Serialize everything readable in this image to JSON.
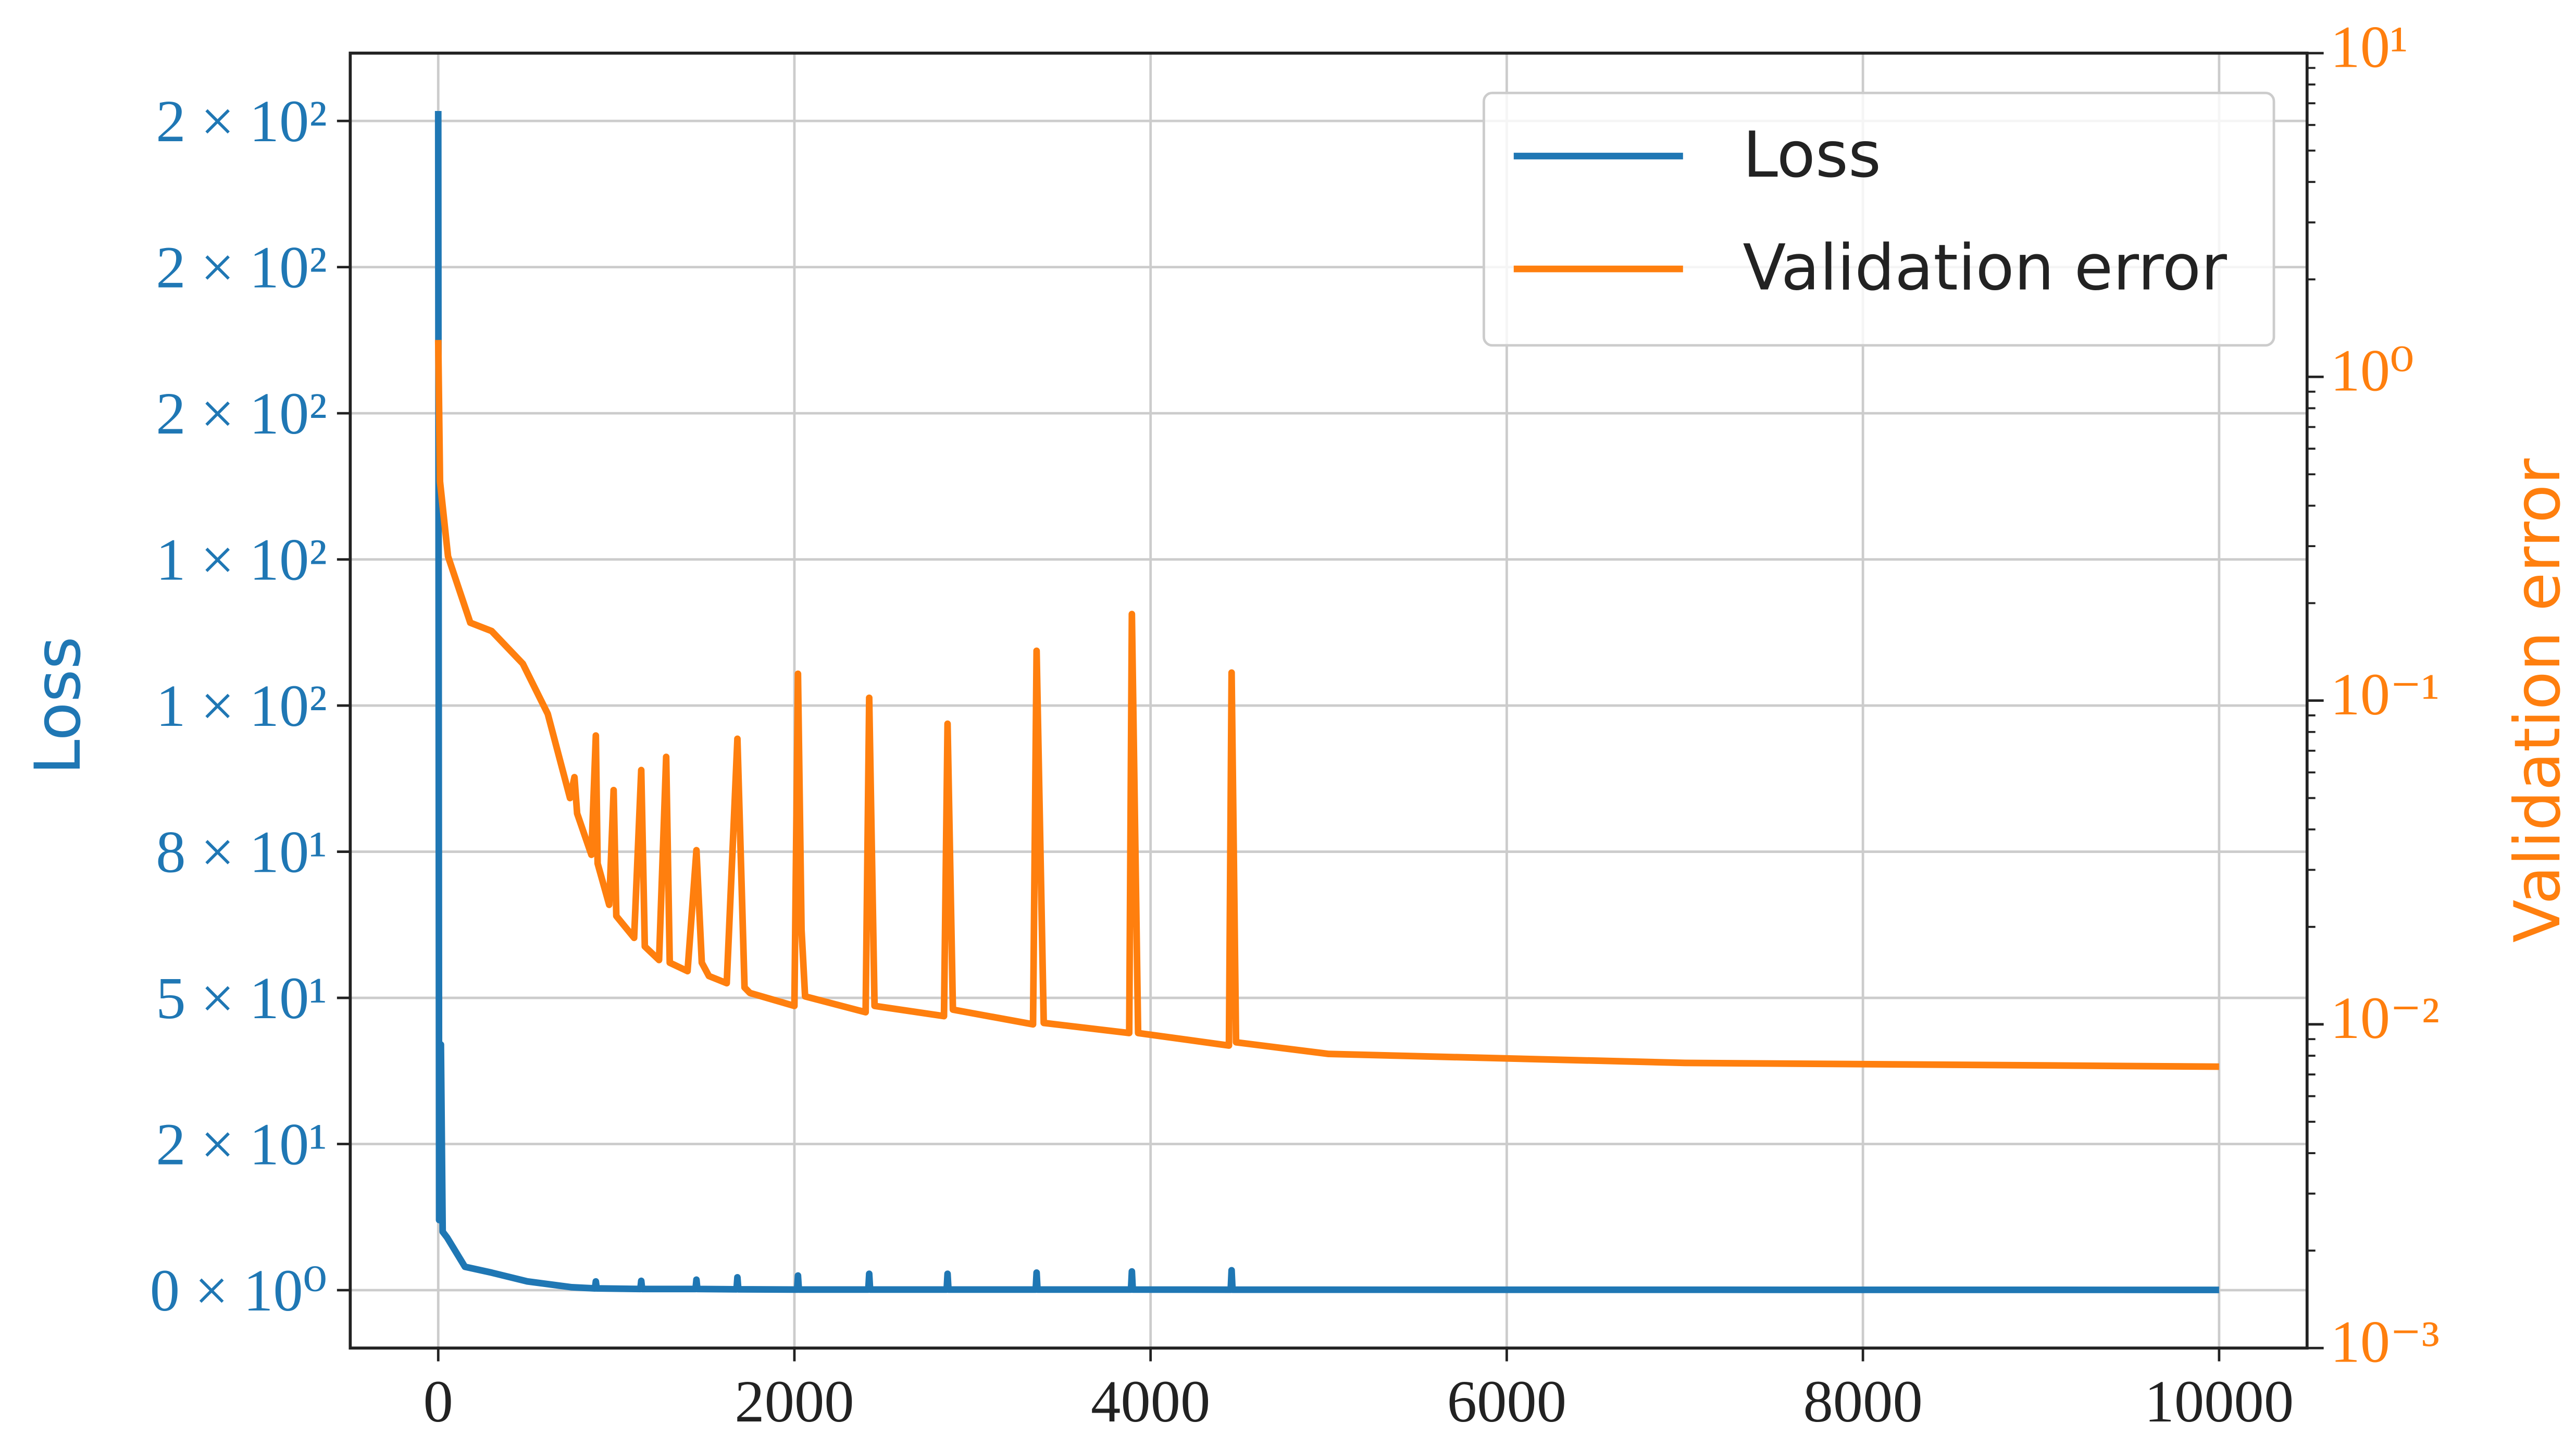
{
  "chart_data": {
    "type": "line",
    "ylabel": "Loss",
    "y2label": "Validation error",
    "xlim": [
      -494,
      10494
    ],
    "xticks": [
      0,
      2000,
      4000,
      6000,
      8000,
      10000
    ],
    "ylim": [
      -9.9,
      211.6
    ],
    "yticks": [
      {
        "value": 0,
        "label": "0 × 10⁰"
      },
      {
        "value": 25,
        "label": "2 × 10¹"
      },
      {
        "value": 50,
        "label": "5 × 10¹"
      },
      {
        "value": 75,
        "label": "8 × 10¹"
      },
      {
        "value": 100,
        "label": "1 × 10²"
      },
      {
        "value": 125,
        "label": "1 × 10²"
      },
      {
        "value": 150,
        "label": "2 × 10²"
      },
      {
        "value": 175,
        "label": "2 × 10²"
      },
      {
        "value": 200,
        "label": "2 × 10²"
      }
    ],
    "y2lim": [
      0.001,
      10
    ],
    "y2log": true,
    "y2ticks": [
      {
        "value": 0.001,
        "label": "10⁻³"
      },
      {
        "value": 0.01,
        "label": "10⁻²"
      },
      {
        "value": 0.1,
        "label": "10⁻¹"
      },
      {
        "value": 1,
        "label": "10⁰"
      },
      {
        "value": 10,
        "label": "10¹"
      }
    ],
    "grid": true,
    "legend": "upper right",
    "series": [
      {
        "name": "Loss",
        "color": "#1f77b4",
        "x": [
          0,
          5,
          15,
          25,
          50,
          150,
          300,
          500,
          750,
          880,
          885,
          890,
          1135,
          1140,
          1145,
          1445,
          1450,
          1455,
          1675,
          1680,
          1685,
          2015,
          2020,
          2025,
          2415,
          2420,
          2425,
          2855,
          2860,
          2865,
          3355,
          3360,
          3365,
          3890,
          3895,
          3900,
          4450,
          4455,
          4460,
          10000
        ],
        "values": [
          201.7,
          12,
          42,
          10,
          9,
          4,
          3,
          1.5,
          0.5,
          0.3,
          1.5,
          0.3,
          0.2,
          1.6,
          0.2,
          0.2,
          1.8,
          0.2,
          0.15,
          2.2,
          0.15,
          0.1,
          2.5,
          0.1,
          0.1,
          2.8,
          0.1,
          0.1,
          2.8,
          0.1,
          0.1,
          3,
          0.1,
          0.1,
          3.2,
          0.1,
          0.08,
          3.4,
          0.08,
          0.05
        ]
      },
      {
        "name": "Validation error",
        "color": "#ff7f0e",
        "axis": "y2",
        "x": [
          0,
          10,
          55,
          180,
          300,
          475,
          615,
          740,
          765,
          780,
          860,
          885,
          895,
          960,
          985,
          1000,
          1100,
          1140,
          1160,
          1240,
          1280,
          1300,
          1400,
          1450,
          1480,
          1520,
          1620,
          1680,
          1720,
          1750,
          2000,
          2020,
          2040,
          2060,
          2400,
          2420,
          2450,
          2840,
          2860,
          2890,
          3340,
          3360,
          3400,
          3880,
          3895,
          3930,
          4440,
          4455,
          4480,
          5000,
          7000,
          10000
        ],
        "values": [
          1.3,
          0.475,
          0.279,
          0.174,
          0.164,
          0.13,
          0.091,
          0.05,
          0.058,
          0.0448,
          0.0334,
          0.078,
          0.0314,
          0.0234,
          0.0529,
          0.0216,
          0.0185,
          0.061,
          0.0174,
          0.0158,
          0.067,
          0.0155,
          0.0146,
          0.0345,
          0.0155,
          0.0141,
          0.0134,
          0.0762,
          0.013,
          0.0125,
          0.0114,
          0.121,
          0.0196,
          0.0122,
          0.0109,
          0.102,
          0.0114,
          0.0106,
          0.0848,
          0.0111,
          0.01,
          0.1425,
          0.0101,
          0.0094,
          0.185,
          0.0094,
          0.0086,
          0.122,
          0.0088,
          0.0081,
          0.0076,
          0.0074
        ]
      }
    ]
  }
}
